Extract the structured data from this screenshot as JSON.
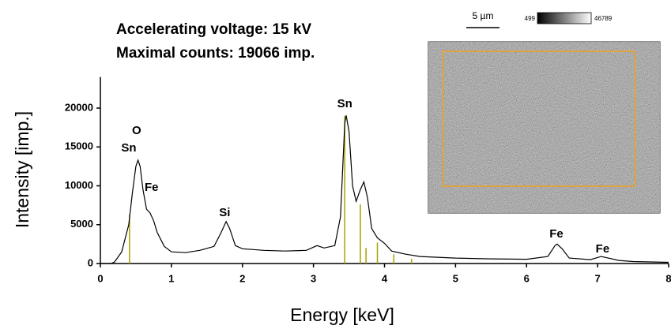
{
  "chart_data": {
    "type": "line",
    "title_lines": [
      "Accelerating voltage: 15 kV",
      "Maximal counts: 19066 imp."
    ],
    "x_label": "Energy [keV]",
    "y_label": "Intensity [imp.]",
    "color": "#000000",
    "x": [
      0,
      0.15,
      0.2,
      0.3,
      0.4,
      0.45,
      0.5,
      0.53,
      0.56,
      0.6,
      0.65,
      0.7,
      0.75,
      0.8,
      0.9,
      1.0,
      1.2,
      1.4,
      1.6,
      1.7,
      1.77,
      1.82,
      1.9,
      2.0,
      2.3,
      2.6,
      2.9,
      3.05,
      3.15,
      3.3,
      3.38,
      3.44,
      3.46,
      3.5,
      3.55,
      3.6,
      3.66,
      3.71,
      3.76,
      3.82,
      3.9,
      4.0,
      4.1,
      4.3,
      4.5,
      5.0,
      5.5,
      6.0,
      6.3,
      6.4,
      6.43,
      6.5,
      6.6,
      6.9,
      7.05,
      7.1,
      7.3,
      7.5,
      8.0
    ],
    "values": [
      0,
      0,
      200,
      1500,
      5000,
      9000,
      12500,
      13300,
      12500,
      9500,
      7000,
      6500,
      5500,
      4000,
      2200,
      1500,
      1400,
      1700,
      2200,
      4000,
      5400,
      4500,
      2300,
      1900,
      1700,
      1600,
      1700,
      2300,
      2000,
      2300,
      6000,
      18000,
      19066,
      17000,
      10000,
      8000,
      9500,
      10500,
      8500,
      4500,
      3300,
      2600,
      1600,
      1200,
      900,
      700,
      600,
      550,
      900,
      2300,
      2500,
      1900,
      700,
      500,
      900,
      800,
      400,
      250,
      150
    ],
    "element_lines": {
      "color": "#a8a000",
      "x": [
        0.41,
        3.44,
        3.66,
        3.74,
        3.9,
        4.13,
        4.38
      ],
      "values": [
        6300,
        19000,
        7600,
        2000,
        2700,
        1200,
        600
      ]
    },
    "annotations": [
      {
        "text": "O",
        "x": 0.51,
        "y": 17060
      },
      {
        "text": "Sn",
        "x": 0.4,
        "y": 14800
      },
      {
        "text": "Fe",
        "x": 0.72,
        "y": 9750
      },
      {
        "text": "Si",
        "x": 1.75,
        "y": 6500
      },
      {
        "text": "Sn",
        "x": 3.44,
        "y": 20500
      },
      {
        "text": "Fe",
        "x": 6.42,
        "y": 3750
      },
      {
        "text": "Fe",
        "x": 7.07,
        "y": 1830
      }
    ],
    "xlim": [
      0,
      8
    ],
    "xticks": [
      0,
      1,
      2,
      3,
      4,
      5,
      6,
      7,
      8
    ],
    "ylim": [
      0,
      24000
    ],
    "yticks": [
      0,
      5000,
      10000,
      15000,
      20000
    ],
    "inset": {
      "scale_bar": "5 µm",
      "colorbar_min": 499,
      "colorbar_max": 46789
    }
  }
}
